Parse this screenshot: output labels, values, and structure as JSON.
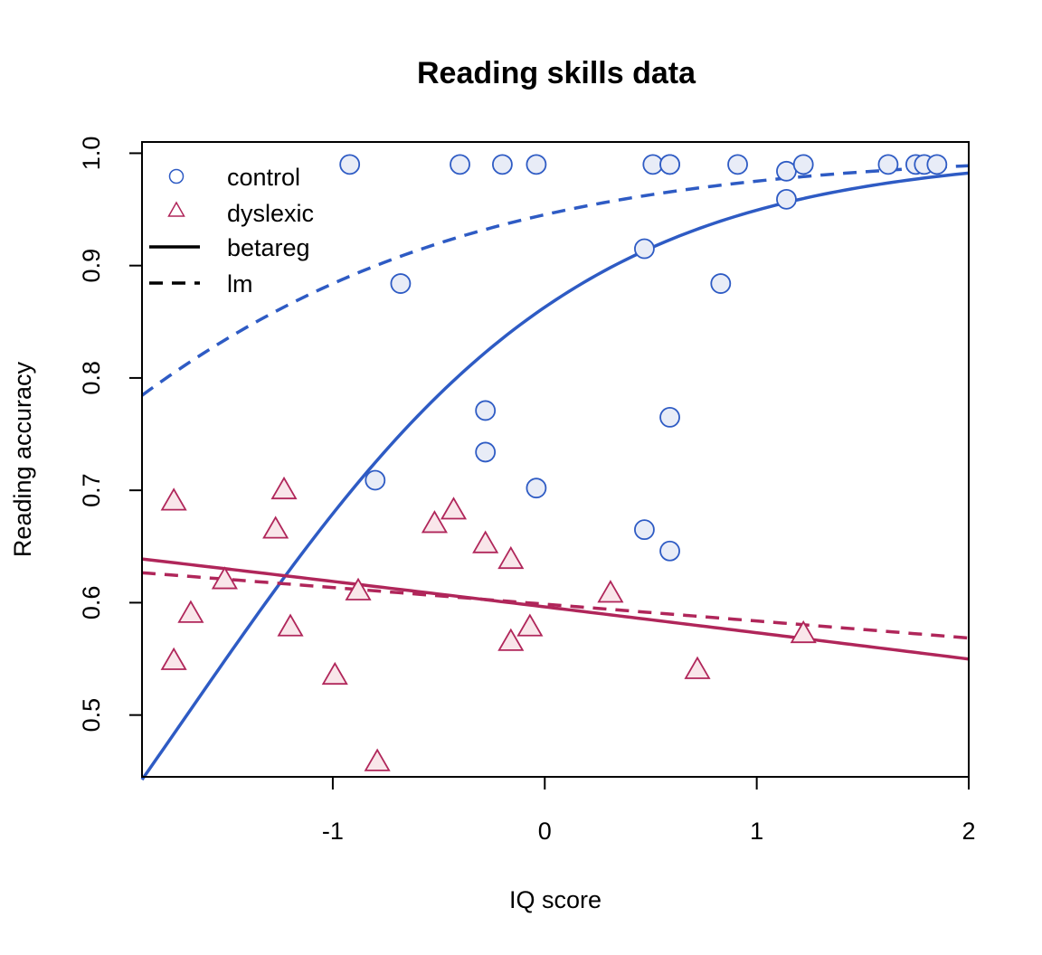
{
  "chart_data": {
    "type": "scatter",
    "title": "Reading skills data",
    "xlabel": "IQ score",
    "ylabel": "Reading accuracy",
    "xlim": [
      -1.9,
      2.0
    ],
    "ylim": [
      0.445,
      1.01
    ],
    "xticks": [
      -1,
      0,
      1,
      2
    ],
    "yticks": [
      0.5,
      0.6,
      0.7,
      0.8,
      0.9,
      1.0
    ],
    "xtick_labels": [
      "-1",
      "0",
      "1",
      "2"
    ],
    "ytick_labels": [
      "0.5",
      "0.6",
      "0.7",
      "0.8",
      "0.9",
      "1.0"
    ],
    "grid": false,
    "legend_position": "top-left",
    "colors": {
      "control": "#2E5BC4",
      "control_fill": "#E8ECF7",
      "dyslexic": "#B0265A",
      "dyslexic_fill": "#F9E6EA",
      "legend_line": "#000000"
    },
    "legend": [
      {
        "label": "control",
        "marker": "circle"
      },
      {
        "label": "dyslexic",
        "marker": "triangle"
      },
      {
        "label": "betareg",
        "line": "solid"
      },
      {
        "label": "lm",
        "line": "dashed"
      }
    ],
    "series": [
      {
        "name": "control",
        "marker": "circle",
        "x": [
          -0.92,
          -0.4,
          -0.2,
          -0.04,
          0.51,
          0.59,
          0.59,
          0.91,
          1.14,
          1.22,
          1.62,
          1.75,
          1.79,
          1.85,
          1.14,
          0.47,
          -0.68,
          0.83,
          -0.28,
          0.59,
          -0.28,
          -0.8,
          -0.04,
          0.47,
          0.59
        ],
        "y": [
          0.99,
          0.99,
          0.99,
          0.99,
          0.99,
          0.99,
          0.99,
          0.99,
          0.984,
          0.99,
          0.99,
          0.99,
          0.99,
          0.99,
          0.959,
          0.915,
          0.884,
          0.884,
          0.771,
          0.765,
          0.734,
          0.709,
          0.702,
          0.665,
          0.646
        ]
      },
      {
        "name": "dyslexic",
        "marker": "triangle",
        "x": [
          -1.75,
          -1.23,
          -1.27,
          -0.52,
          -0.43,
          -0.28,
          -0.16,
          -1.51,
          -0.88,
          -1.67,
          -1.2,
          -0.07,
          -0.16,
          0.31,
          1.22,
          -1.75,
          -0.99,
          0.72,
          -0.79
        ],
        "y": [
          0.69,
          0.7,
          0.665,
          0.67,
          0.682,
          0.652,
          0.638,
          0.62,
          0.61,
          0.59,
          0.578,
          0.578,
          0.565,
          0.608,
          0.572,
          0.548,
          0.535,
          0.54,
          0.458
        ]
      }
    ],
    "fitted_lines": [
      {
        "name": "control betareg",
        "group": "control",
        "style": "solid",
        "model": "logit",
        "intercept": 1.84,
        "slope": 1.09
      },
      {
        "name": "control lm",
        "group": "control",
        "style": "dashed",
        "model": "logit",
        "intercept": 2.85,
        "slope": 0.82
      },
      {
        "name": "dyslexic betareg",
        "group": "dyslexic",
        "style": "solid",
        "model": "logit",
        "intercept": 0.39,
        "slope": -0.095
      },
      {
        "name": "dyslexic lm",
        "group": "dyslexic",
        "style": "dashed",
        "model": "logit",
        "intercept": 0.4,
        "slope": -0.062
      }
    ]
  }
}
